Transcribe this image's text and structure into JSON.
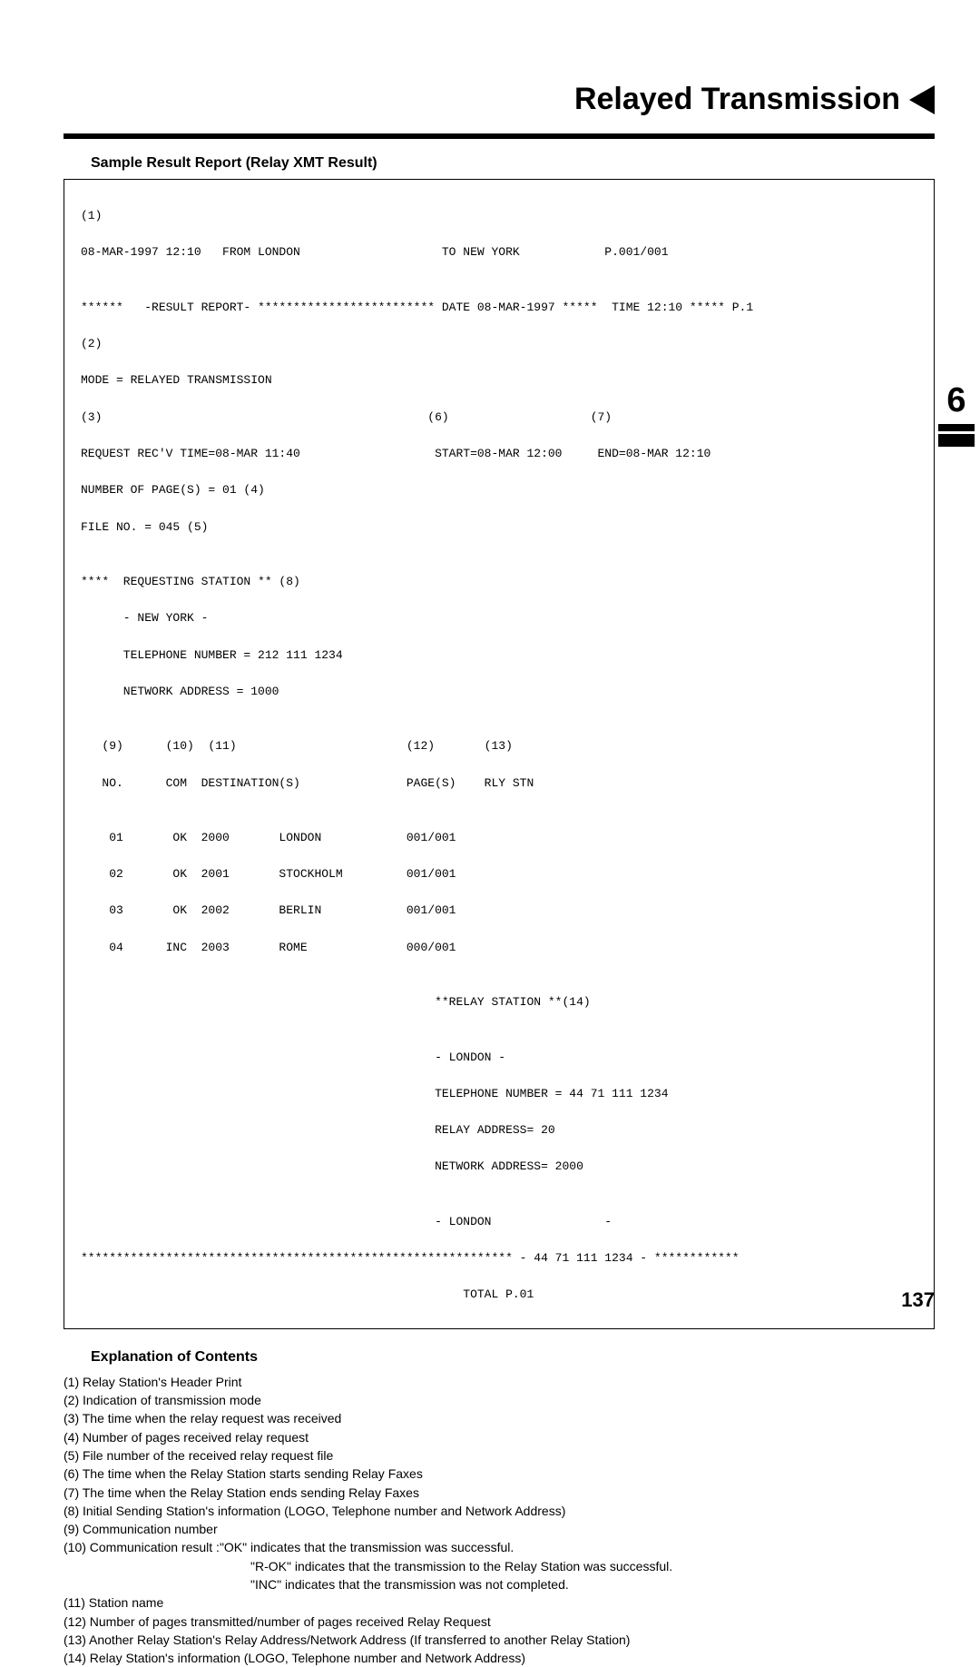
{
  "header": {
    "title": "Relayed Transmission"
  },
  "subhead": "Sample Result Report (Relay XMT Result)",
  "sideTab": {
    "digit": "6"
  },
  "pageNumber": "137",
  "report": {
    "l01": "(1)",
    "l02": "08-MAR-1997 12:10   FROM LONDON                    TO NEW YORK            P.001/001",
    "l03": "",
    "l04": "******   -RESULT REPORT- ************************* DATE 08-MAR-1997 *****  TIME 12:10 ***** P.1",
    "l05": "(2)",
    "l06": "MODE = RELAYED TRANSMISSION",
    "l07": "(3)                                              (6)                    (7)",
    "l08": "REQUEST REC'V TIME=08-MAR 11:40                   START=08-MAR 12:00     END=08-MAR 12:10",
    "l09": "NUMBER OF PAGE(S) = 01 (4)",
    "l10": "FILE NO. = 045 (5)",
    "l11": "",
    "l12": "****  REQUESTING STATION ** (8)",
    "l13": "      - NEW YORK -",
    "l14": "      TELEPHONE NUMBER = 212 111 1234",
    "l15": "      NETWORK ADDRESS = 1000",
    "l16": "",
    "l17": "   (9)      (10)  (11)                        (12)       (13)",
    "l18": "   NO.      COM  DESTINATION(S)               PAGE(S)    RLY STN",
    "l19": "",
    "l20": "    01       OK  2000       LONDON            001/001",
    "l21": "    02       OK  2001       STOCKHOLM         001/001",
    "l22": "    03       OK  2002       BERLIN            001/001",
    "l23": "    04      INC  2003       ROME              000/001",
    "l24": "",
    "l25": "                                                  **RELAY STATION **(14)",
    "l26": "",
    "l27": "                                                  - LONDON -",
    "l28": "                                                  TELEPHONE NUMBER = 44 71 111 1234",
    "l29": "                                                  RELAY ADDRESS= 20",
    "l30": "                                                  NETWORK ADDRESS= 2000",
    "l31": "",
    "l32": "                                                  - LONDON                -",
    "l33": "************************************************************* - 44 71 111 1234 - ************",
    "l34": "                                                      TOTAL P.01"
  },
  "explainHead": "Explanation of Contents",
  "explain": {
    "e01": "(1) Relay Station's Header Print",
    "e02": "(2) Indication of transmission mode",
    "e03": "(3) The time when the relay request was received",
    "e04": "(4) Number of pages received relay request",
    "e05": "(5) File number of the received relay request file",
    "e06": "(6) The time when the Relay Station starts sending Relay Faxes",
    "e07": "(7) The time when the Relay Station ends sending Relay Faxes",
    "e08": "(8) Initial Sending Station's information (LOGO, Telephone number and Network Address)",
    "e09": "(9) Communication number",
    "e10a": "(10) Communication result   :\"OK\" indicates that the transmission was successful.",
    "e10b": "\"R-OK\" indicates that the transmission to the Relay Station was successful.",
    "e10c": "\"INC\" indicates that the transmission was not completed.",
    "e11": "(11) Station name",
    "e12": "(12) Number of pages transmitted/number of pages received Relay Request",
    "e13": "(13) Another Relay Station's Relay Address/Network Address (If transferred to another Relay Station)",
    "e14": "(14) Relay Station's information (LOGO, Telephone number and Network Address)"
  }
}
